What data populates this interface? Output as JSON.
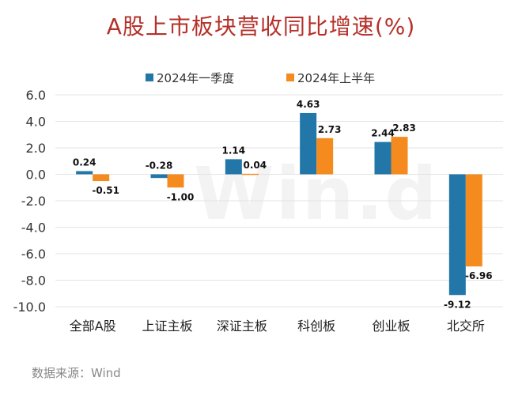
{
  "title": "A股上市板块营收同比增速(%)",
  "source": "数据来源：Wind",
  "watermark": "Win.d",
  "colors": {
    "series1": "#2276a8",
    "series2": "#f58a1f",
    "title": "#b5302a",
    "grid": "#e3e3e3"
  },
  "chart_data": {
    "type": "bar",
    "title": "A股上市板块营收同比增速(%)",
    "categories": [
      "全部A股",
      "上证主板",
      "深证主板",
      "科创板",
      "创业板",
      "北交所"
    ],
    "series": [
      {
        "name": "2024年一季度",
        "values": [
          0.24,
          -0.28,
          1.14,
          4.63,
          2.44,
          -9.12
        ],
        "labels": [
          "0.24",
          "-0.28",
          "1.14",
          "4.63",
          "2.44",
          "-9.12"
        ]
      },
      {
        "name": "2024年上半年",
        "values": [
          -0.51,
          -1.0,
          0.04,
          2.73,
          2.83,
          -6.96
        ],
        "labels": [
          "-0.51",
          "-1.00",
          "0.04",
          "2.73",
          "2.83",
          "-6.96"
        ]
      }
    ],
    "ylim": [
      -10,
      6
    ],
    "yticks": [
      "6.0",
      "4.0",
      "2.0",
      "0.0",
      "-2.0",
      "-4.0",
      "-6.0",
      "-8.0",
      "-10.0"
    ],
    "grid": true,
    "legend_position": "top"
  }
}
